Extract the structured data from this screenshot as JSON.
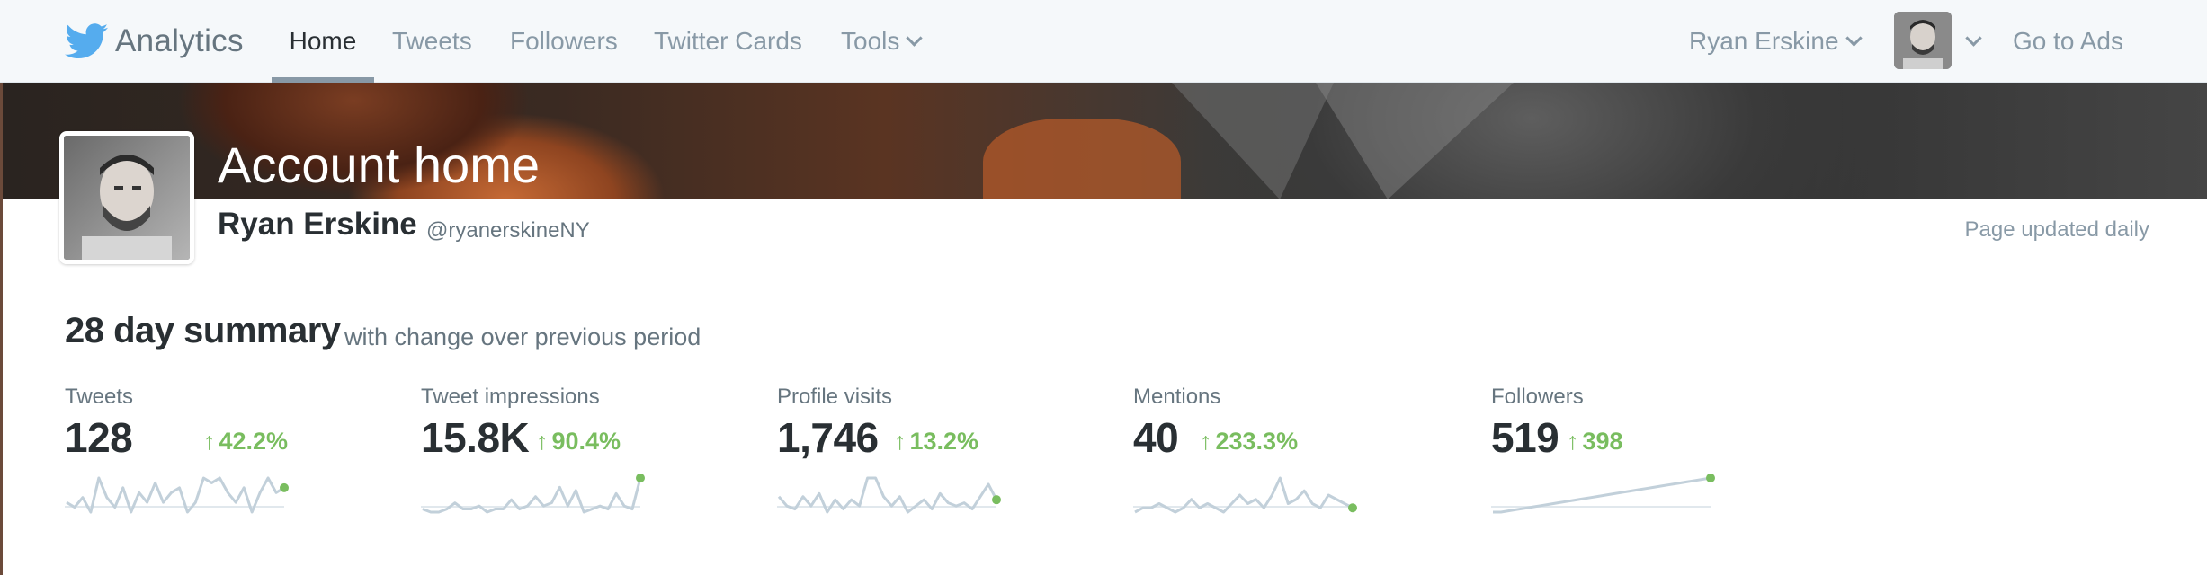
{
  "nav": {
    "brand": "Analytics",
    "links": [
      {
        "label": "Home",
        "active": true
      },
      {
        "label": "Tweets"
      },
      {
        "label": "Followers"
      },
      {
        "label": "Twitter Cards"
      },
      {
        "label": "Tools",
        "dropdown": true
      }
    ],
    "user_menu": "Ryan Erskine",
    "go_to_ads": "Go to Ads"
  },
  "header": {
    "title": "Account home",
    "name": "Ryan Erskine",
    "handle": "@ryanerskineNY",
    "updated": "Page updated daily"
  },
  "summary": {
    "title": "28 day summary",
    "subtitle": "with change over previous period",
    "metrics": [
      {
        "label": "Tweets",
        "value": "128",
        "change": "42.2%",
        "trend": [
          3,
          2,
          4,
          1,
          8,
          4,
          2,
          6,
          1,
          5,
          3,
          7,
          3,
          5,
          6,
          1,
          3,
          8,
          7,
          8,
          5,
          3,
          6,
          1,
          5,
          8,
          5,
          6
        ]
      },
      {
        "label": "Tweet impressions",
        "value": "15.8K",
        "change": "90.4%",
        "trend": [
          2,
          1,
          1,
          2,
          4,
          2,
          2,
          3,
          1,
          2,
          2,
          5,
          2,
          3,
          6,
          3,
          4,
          9,
          3,
          8,
          1,
          2,
          3,
          2,
          7,
          3,
          2,
          12
        ]
      },
      {
        "label": "Profile visits",
        "value": "1,746",
        "change": "13.2%",
        "trend": [
          6,
          3,
          2,
          6,
          3,
          7,
          1,
          5,
          2,
          5,
          3,
          12,
          12,
          6,
          3,
          6,
          1,
          3,
          5,
          2,
          7,
          4,
          3,
          4,
          2,
          6,
          10,
          5
        ]
      },
      {
        "label": "Mentions",
        "value": "40",
        "change": "233.3%",
        "trend": [
          1,
          2,
          2,
          3,
          2,
          1,
          2,
          4,
          2,
          3,
          2,
          1,
          3,
          5,
          3,
          4,
          2,
          5,
          9,
          3,
          4,
          6,
          3,
          2,
          5,
          4,
          3,
          2
        ]
      },
      {
        "label": "Followers",
        "value": "519",
        "change": "398",
        "trend": [
          1,
          1,
          2,
          3,
          4,
          5,
          6,
          7,
          8,
          9,
          10,
          11,
          12,
          13,
          14,
          15,
          16,
          17,
          18,
          19,
          20,
          21,
          22,
          23,
          24,
          25,
          26,
          27
        ]
      }
    ]
  },
  "colors": {
    "accent_positive": "#79bd5f",
    "spark_line": "#c2d0da",
    "brand_blue": "#55acee"
  },
  "icons": {
    "brand": "twitter-bird-icon",
    "dropdown": "chevron-down-icon",
    "change": "arrow-up-icon"
  }
}
